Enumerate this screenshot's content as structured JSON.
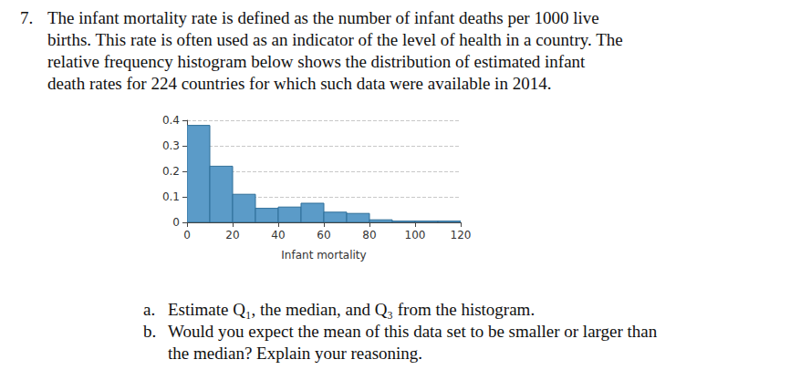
{
  "question": {
    "number": "7.",
    "lines": [
      "The infant mortality rate is defined as  the number of infant deaths per 1000 live",
      "births. This rate is often used as an indicator of the level of health in a country. The",
      "relative frequency histogram below shows the distribution of estimated infant",
      "death rates for 224 countries for which such data were available in 2014."
    ],
    "parts": [
      {
        "label": "a.",
        "lines": [
          "Estimate Q₁, the median, and Q₃ from the histogram."
        ]
      },
      {
        "label": "b.",
        "lines": [
          "Would you expect the mean of this data set to be smaller or larger than",
          "the median? Explain your reasoning."
        ]
      }
    ]
  },
  "chart_data": {
    "type": "histogram",
    "xlabel": "Infant mortality",
    "bins": [
      0,
      10,
      20,
      30,
      40,
      50,
      60,
      70,
      80,
      90,
      100,
      110,
      120
    ],
    "values": [
      0.38,
      0.22,
      0.11,
      0.055,
      0.06,
      0.075,
      0.04,
      0.035,
      0.01,
      0.005,
      0.005,
      0.005
    ],
    "color": "#5b9bc8",
    "xlim": [
      0,
      120
    ],
    "xticks": [
      0,
      20,
      40,
      60,
      80,
      100,
      120
    ],
    "ylim": [
      0,
      0.4
    ],
    "yticks": [
      0,
      0.1,
      0.2,
      0.3,
      0.4
    ],
    "grid": true
  }
}
